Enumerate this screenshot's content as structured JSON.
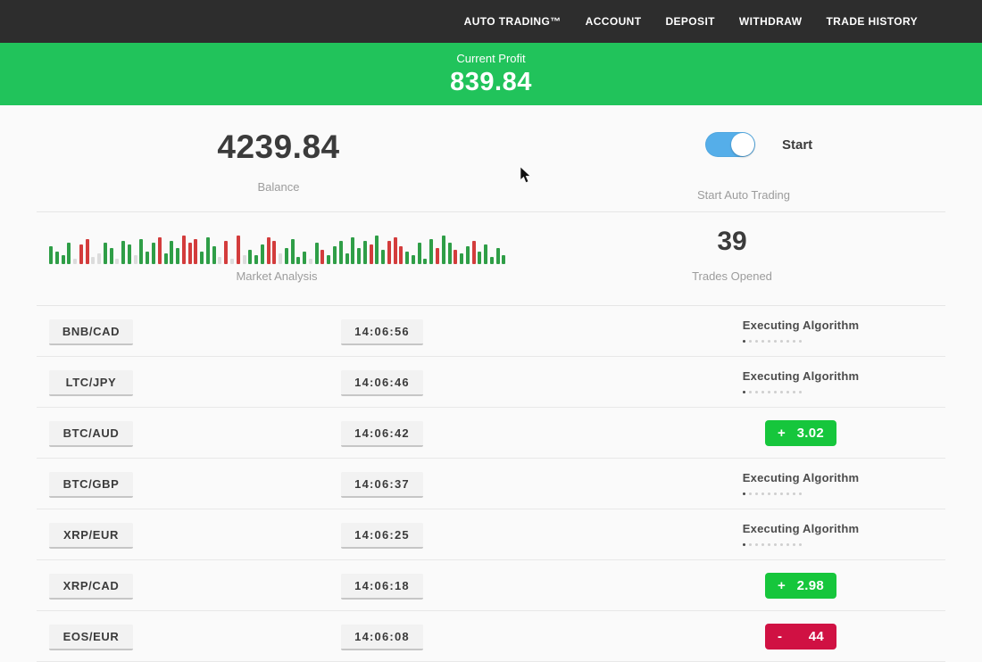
{
  "nav": {
    "items": [
      "AUTO TRADING™",
      "ACCOUNT",
      "DEPOSIT",
      "WITHDRAW",
      "TRADE HISTORY"
    ]
  },
  "profit_banner": {
    "label": "Current Profit",
    "value": "839.84"
  },
  "stats": {
    "balance": {
      "value": "4239.84",
      "caption": "Balance"
    },
    "auto_trading": {
      "state_label": "Start",
      "caption": "Start Auto Trading",
      "enabled": true
    },
    "market": {
      "caption": "Market Analysis"
    },
    "trades_opened": {
      "value": "39",
      "caption": "Trades Opened"
    }
  },
  "progress_dots": {
    "total": 10,
    "active": 1
  },
  "trades": [
    {
      "pair": "BNB/CAD",
      "time": "14:06:56",
      "status": "executing",
      "status_label": "Executing Algorithm"
    },
    {
      "pair": "LTC/JPY",
      "time": "14:06:46",
      "status": "executing",
      "status_label": "Executing Algorithm"
    },
    {
      "pair": "BTC/AUD",
      "time": "14:06:42",
      "status": "profit",
      "sign": "+",
      "amount": "3.02"
    },
    {
      "pair": "BTC/GBP",
      "time": "14:06:37",
      "status": "executing",
      "status_label": "Executing Algorithm"
    },
    {
      "pair": "XRP/EUR",
      "time": "14:06:25",
      "status": "executing",
      "status_label": "Executing Algorithm"
    },
    {
      "pair": "XRP/CAD",
      "time": "14:06:18",
      "status": "profit",
      "sign": "+",
      "amount": "2.98"
    },
    {
      "pair": "EOS/EUR",
      "time": "14:06:08",
      "status": "loss",
      "sign": "-",
      "amount": "44"
    }
  ],
  "chart_data": {
    "type": "bar",
    "title": "Market Analysis",
    "ylim": [
      0,
      38
    ],
    "legend": "none",
    "colors": {
      "g": "#2f9e47",
      "r": "#d33c3c",
      "p": "#dcdcdc"
    },
    "bars": [
      [
        20,
        "g"
      ],
      [
        14,
        "g"
      ],
      [
        10,
        "g"
      ],
      [
        24,
        "g"
      ],
      [
        6,
        "p"
      ],
      [
        22,
        "r"
      ],
      [
        28,
        "r"
      ],
      [
        8,
        "p"
      ],
      [
        12,
        "p"
      ],
      [
        24,
        "g"
      ],
      [
        18,
        "g"
      ],
      [
        6,
        "p"
      ],
      [
        26,
        "g"
      ],
      [
        22,
        "g"
      ],
      [
        10,
        "p"
      ],
      [
        28,
        "g"
      ],
      [
        14,
        "g"
      ],
      [
        24,
        "g"
      ],
      [
        30,
        "r"
      ],
      [
        12,
        "g"
      ],
      [
        26,
        "g"
      ],
      [
        18,
        "g"
      ],
      [
        32,
        "r"
      ],
      [
        24,
        "r"
      ],
      [
        28,
        "r"
      ],
      [
        14,
        "g"
      ],
      [
        30,
        "g"
      ],
      [
        20,
        "g"
      ],
      [
        8,
        "p"
      ],
      [
        26,
        "r"
      ],
      [
        6,
        "p"
      ],
      [
        32,
        "r"
      ],
      [
        10,
        "p"
      ],
      [
        16,
        "g"
      ],
      [
        10,
        "g"
      ],
      [
        22,
        "g"
      ],
      [
        30,
        "r"
      ],
      [
        26,
        "r"
      ],
      [
        12,
        "p"
      ],
      [
        18,
        "g"
      ],
      [
        28,
        "g"
      ],
      [
        8,
        "g"
      ],
      [
        14,
        "g"
      ],
      [
        6,
        "p"
      ],
      [
        24,
        "g"
      ],
      [
        16,
        "r"
      ],
      [
        10,
        "g"
      ],
      [
        20,
        "g"
      ],
      [
        26,
        "g"
      ],
      [
        12,
        "g"
      ],
      [
        30,
        "g"
      ],
      [
        18,
        "g"
      ],
      [
        26,
        "g"
      ],
      [
        22,
        "r"
      ],
      [
        32,
        "g"
      ],
      [
        16,
        "g"
      ],
      [
        26,
        "r"
      ],
      [
        30,
        "r"
      ],
      [
        20,
        "r"
      ],
      [
        14,
        "g"
      ],
      [
        10,
        "g"
      ],
      [
        24,
        "g"
      ],
      [
        6,
        "g"
      ],
      [
        28,
        "g"
      ],
      [
        18,
        "r"
      ],
      [
        32,
        "g"
      ],
      [
        24,
        "g"
      ],
      [
        16,
        "r"
      ],
      [
        12,
        "g"
      ],
      [
        20,
        "g"
      ],
      [
        26,
        "r"
      ],
      [
        14,
        "g"
      ],
      [
        22,
        "g"
      ],
      [
        8,
        "g"
      ],
      [
        18,
        "g"
      ],
      [
        10,
        "g"
      ]
    ]
  },
  "colors": {
    "navbar_bg": "#2d2d2d",
    "banner_green": "#21c35b",
    "toggle_blue": "#55aee9",
    "profit_green": "#16c63c",
    "loss_red": "#d01143"
  }
}
